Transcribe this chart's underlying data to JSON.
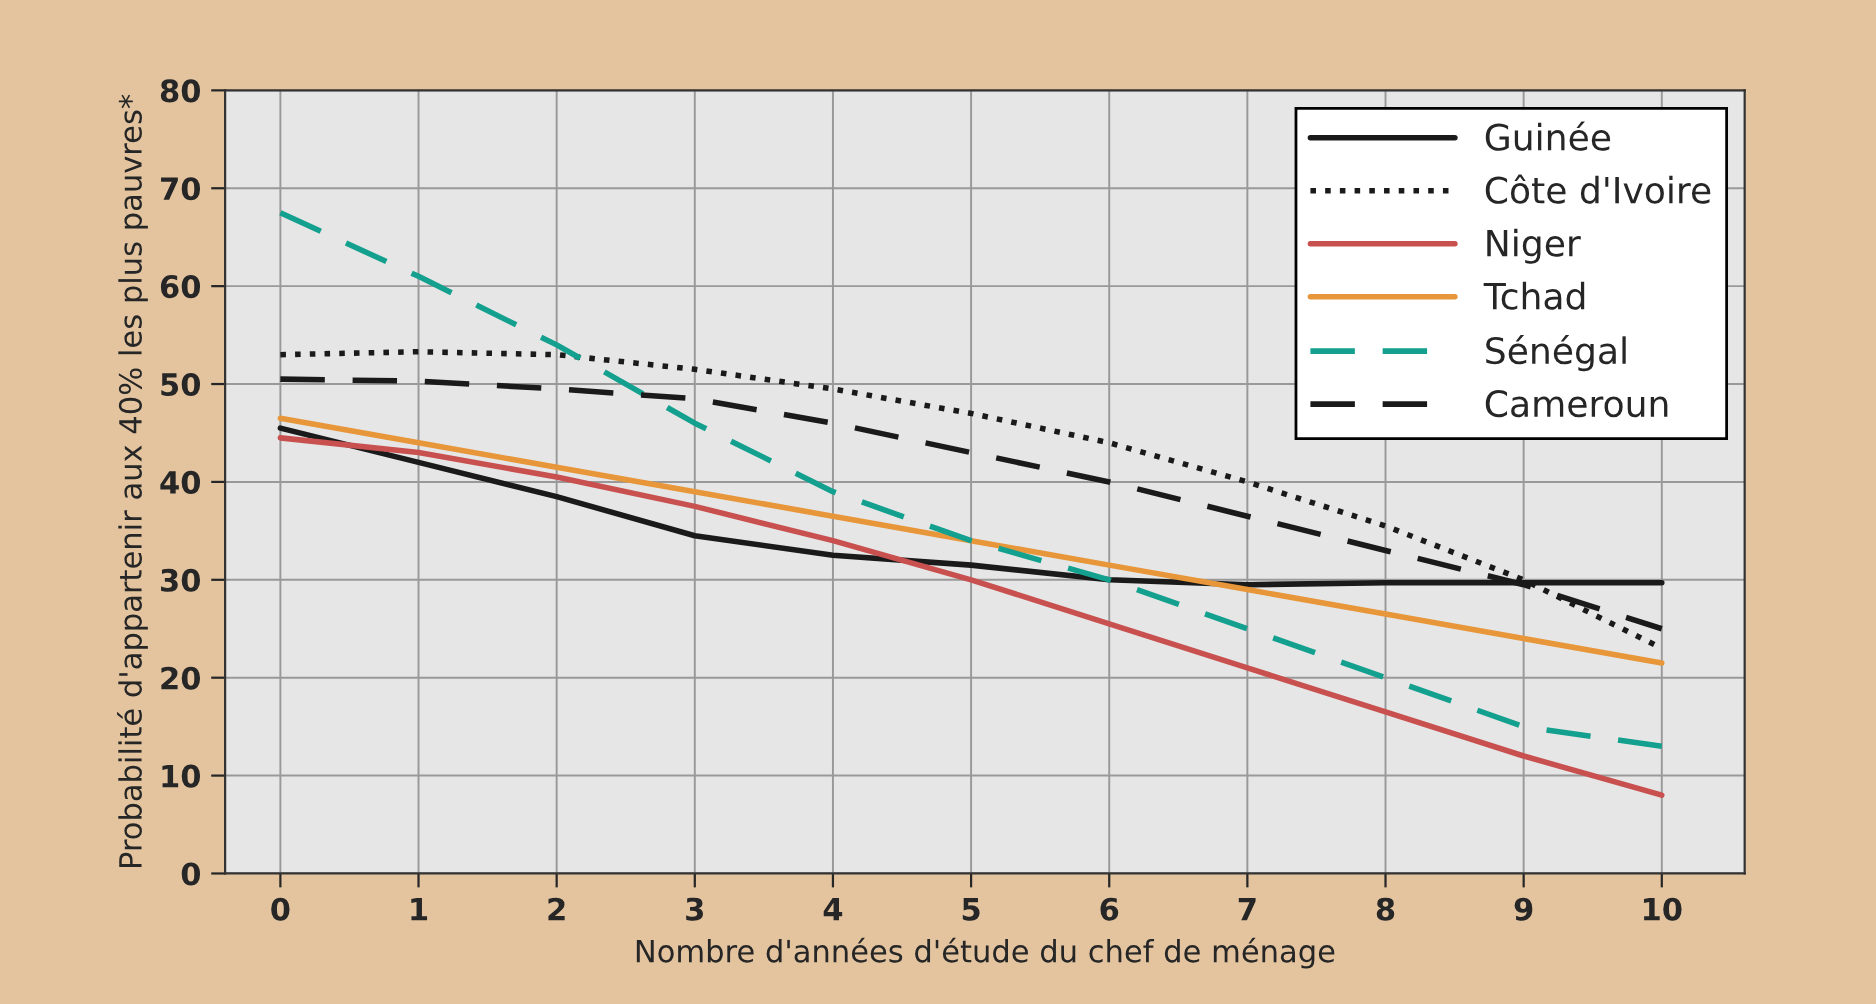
{
  "chart_data": {
    "type": "line",
    "xlabel": "Nombre d'années d'étude du chef de ménage",
    "ylabel": "Probabilité d'appartenir aux 40% les plus pauvres*",
    "x": [
      0,
      1,
      2,
      3,
      4,
      5,
      6,
      7,
      8,
      9,
      10
    ],
    "series": [
      {
        "name": "Guinée",
        "color": "#1a1a1a",
        "line_style": "solid",
        "values": [
          45.5,
          42,
          38.5,
          34.5,
          32.5,
          31.5,
          30,
          29.5,
          29.7,
          29.7,
          29.7
        ]
      },
      {
        "name": "Côte d'Ivoire",
        "color": "#1a1a1a",
        "line_style": "dotted",
        "values": [
          53,
          53.3,
          53,
          51.5,
          49.5,
          47,
          44,
          40,
          35.5,
          30,
          23
        ]
      },
      {
        "name": "Niger",
        "color": "#c8514f",
        "line_style": "solid",
        "values": [
          44.5,
          43,
          40.5,
          37.5,
          34,
          30,
          25.5,
          21,
          16.5,
          12,
          8
        ]
      },
      {
        "name": "Tchad",
        "color": "#e8963a",
        "line_style": "solid",
        "values": [
          46.5,
          44,
          41.5,
          39,
          36.5,
          34,
          31.5,
          29,
          26.5,
          24,
          21.5
        ]
      },
      {
        "name": "Sénégal",
        "color": "#13a08e",
        "line_style": "dashed",
        "values": [
          67.5,
          61,
          54,
          46,
          39,
          34,
          30,
          25,
          20,
          15,
          13
        ]
      },
      {
        "name": "Cameroun",
        "color": "#1a1a1a",
        "line_style": "dashed",
        "values": [
          50.5,
          50.3,
          49.5,
          48.5,
          46,
          43,
          40,
          36.5,
          33,
          29.5,
          25
        ]
      }
    ],
    "xlim": [
      -0.4,
      10.6
    ],
    "ylim": [
      0,
      80
    ],
    "xticks": [
      0,
      1,
      2,
      3,
      4,
      5,
      6,
      7,
      8,
      9,
      10
    ],
    "yticks": [
      0,
      10,
      20,
      30,
      40,
      50,
      60,
      70,
      80
    ],
    "grid": true,
    "legend": "top right"
  }
}
